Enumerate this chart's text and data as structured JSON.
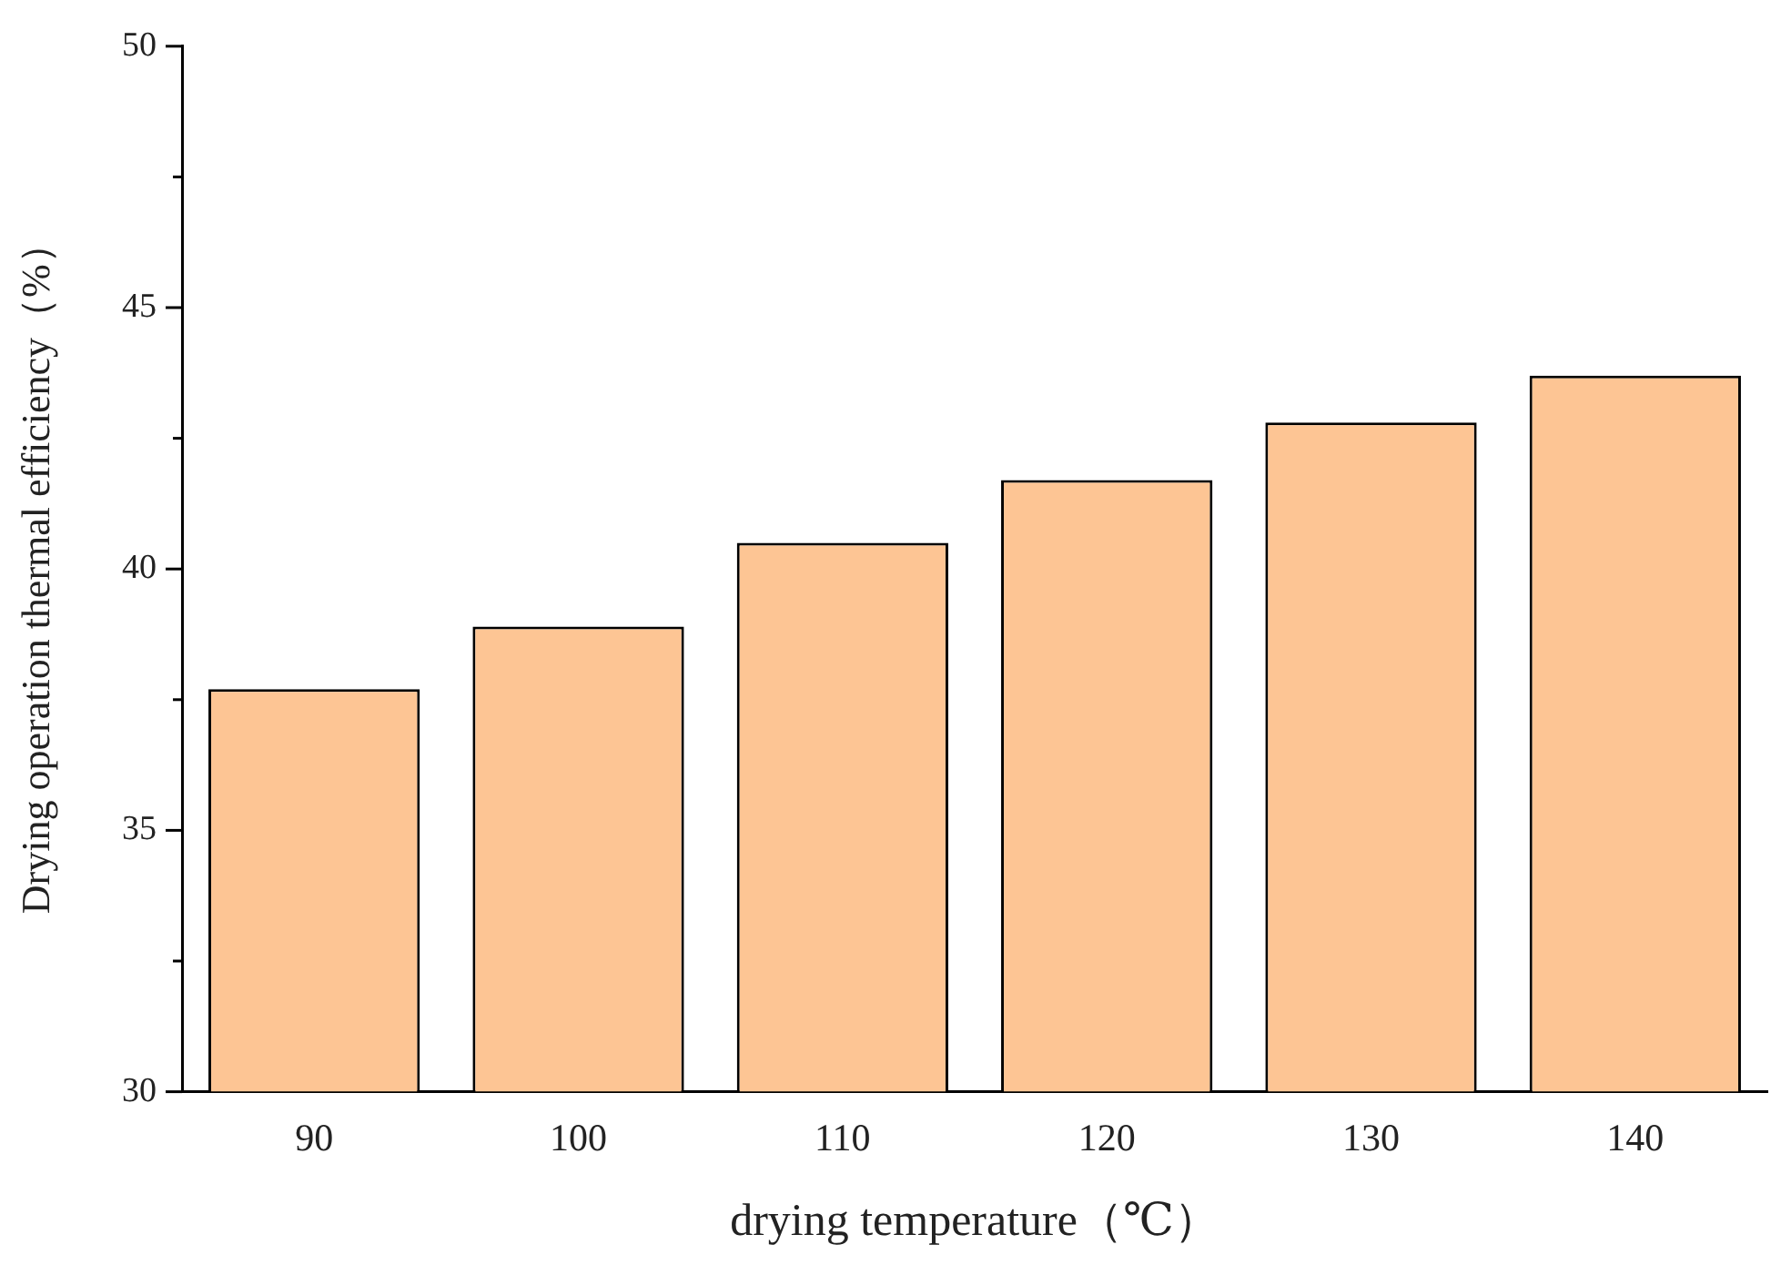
{
  "chart_data": {
    "type": "bar",
    "xlabel": "drying temperature（℃）",
    "ylabel": "Drying operation thermal efficiency（%）",
    "categories": [
      "90",
      "100",
      "110",
      "120",
      "130",
      "140"
    ],
    "values": [
      37.7,
      38.9,
      40.5,
      41.7,
      42.8,
      43.7
    ],
    "color": "#fdc594",
    "ylim": [
      30,
      50
    ],
    "yticks": [
      30,
      {
        "value": 32.5,
        "label": null
      },
      35,
      {
        "value": 37.5,
        "label": null
      },
      40,
      {
        "value": 42.5,
        "label": null
      },
      45,
      {
        "value": 47.5,
        "label": null
      },
      50
    ],
    "grid": false,
    "legend": false
  }
}
